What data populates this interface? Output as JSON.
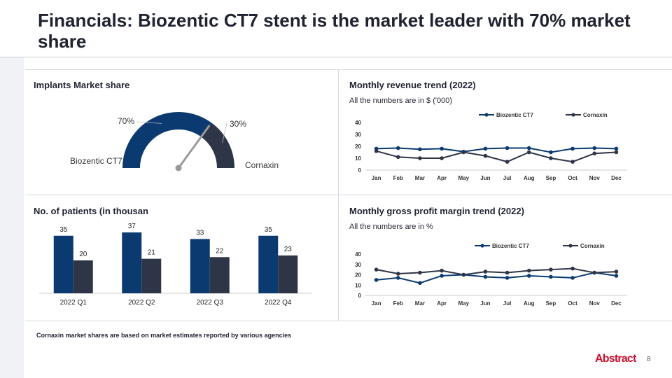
{
  "title": "Financials: Biozentic CT7 stent is the market leader with 70% market share",
  "colors": {
    "primary": "#0b3a70",
    "secondary": "#2e3547",
    "needle": "#9a9a9a",
    "brand": "#c8102e"
  },
  "footnote": "Cornaxin market shares are based on market estimates reported by various agencies",
  "logo": "Abstract",
  "page_number": "8",
  "chart_data": [
    {
      "id": "market_share",
      "type": "gauge",
      "title": "Implants Market share",
      "slices": [
        {
          "label": "Biozentic CT7",
          "value": 70,
          "value_label": "70%"
        },
        {
          "label": "Cornaxin",
          "value": 30,
          "value_label": "30%"
        }
      ]
    },
    {
      "id": "revenue",
      "type": "line",
      "title": "Monthly revenue trend (2022)",
      "subtitle": "All the numbers are in $ ('000)",
      "categories": [
        "Jan",
        "Feb",
        "Mar",
        "Apr",
        "May",
        "Jun",
        "Jul",
        "Aug",
        "Sep",
        "Oct",
        "Nov",
        "Dec"
      ],
      "ylim": [
        0,
        40
      ],
      "yticks": [
        0,
        10,
        20,
        30,
        40
      ],
      "series": [
        {
          "name": "Biozentic CT7",
          "values": [
            18,
            18.5,
            17.5,
            18,
            15.5,
            18,
            18.5,
            18.5,
            15,
            18,
            18.5,
            18
          ]
        },
        {
          "name": "Cornaxin",
          "values": [
            16,
            11,
            10,
            10,
            15,
            12,
            7,
            15,
            10,
            7,
            14,
            15
          ]
        }
      ]
    },
    {
      "id": "patients",
      "type": "bar",
      "title": "No. of patients (in thousan",
      "categories": [
        "2022 Q1",
        "2022 Q2",
        "2022 Q3",
        "2022 Q4"
      ],
      "ylim": [
        0,
        40
      ],
      "series": [
        {
          "name": "Biozentic CT7",
          "values": [
            35,
            37,
            33,
            35
          ]
        },
        {
          "name": "Cornaxin",
          "values": [
            20,
            21,
            22,
            23
          ]
        }
      ]
    },
    {
      "id": "gross_margin",
      "type": "line",
      "title": "Monthly gross profit margin trend (2022)",
      "subtitle": "All the numbers are in %",
      "categories": [
        "Jan",
        "Feb",
        "Mar",
        "Apr",
        "May",
        "Jun",
        "Jul",
        "Aug",
        "Sep",
        "Oct",
        "Nov",
        "Dec"
      ],
      "ylim": [
        0,
        40
      ],
      "yticks": [
        0,
        10,
        20,
        30,
        40
      ],
      "series": [
        {
          "name": "Biozentic CT7",
          "values": [
            15,
            17,
            12,
            19,
            20,
            18,
            17,
            19,
            18,
            17,
            22,
            19
          ]
        },
        {
          "name": "Cornaxin",
          "values": [
            25,
            21,
            22,
            24,
            20,
            23,
            22,
            24,
            25,
            26,
            22,
            23
          ]
        }
      ]
    }
  ]
}
